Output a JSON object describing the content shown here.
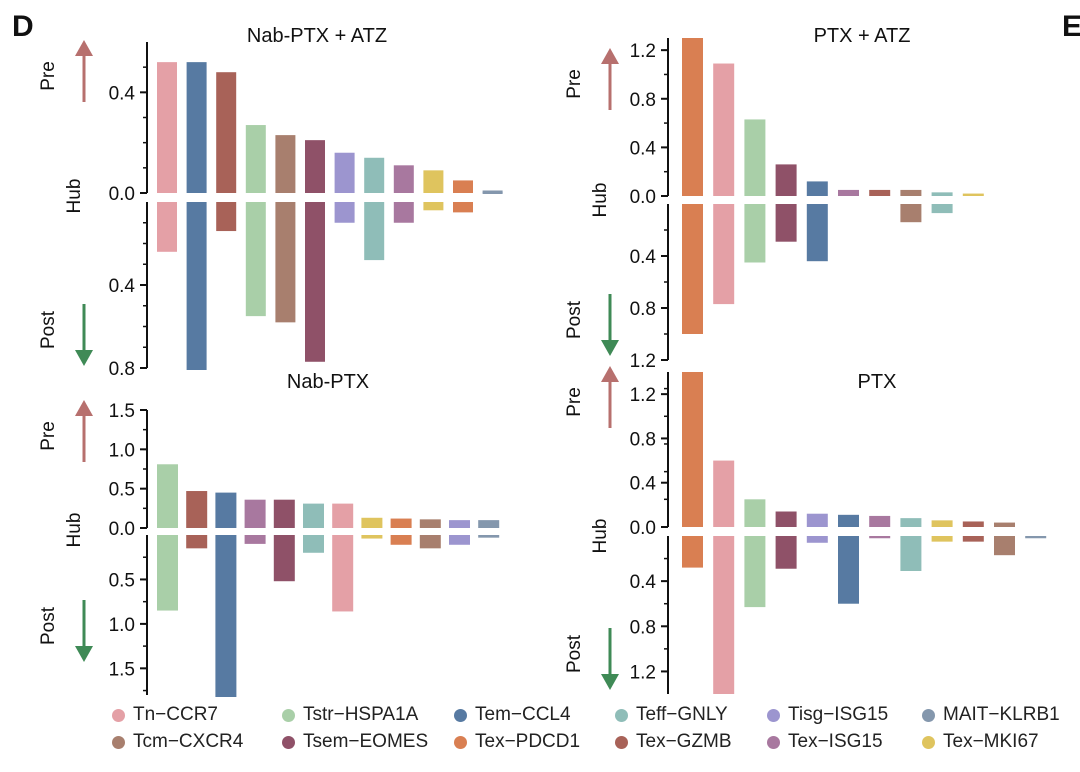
{
  "panel_labels": {
    "left": "D",
    "right": "E"
  },
  "axis_words": {
    "pre": "Pre",
    "hub": "Hub",
    "post": "Post"
  },
  "colors": {
    "arrow_up": "#b7706e",
    "arrow_down": "#3f8a56",
    "axis": "#111111"
  },
  "legend": [
    {
      "label": "Tn−CCR7",
      "color": "#e4a0a6"
    },
    {
      "label": "Tstr−HSPA1A",
      "color": "#a9cfa8"
    },
    {
      "label": "Tem−CCL4",
      "color": "#577aa2"
    },
    {
      "label": "Teff−GNLY",
      "color": "#8fbdb8"
    },
    {
      "label": "Tisg−ISG15",
      "color": "#9c95cf"
    },
    {
      "label": "MAIT−KLRB1",
      "color": "#8497ad"
    },
    {
      "label": "Tcm−CXCR4",
      "color": "#a87f6e"
    },
    {
      "label": "Tsem−EOMES",
      "color": "#8f5168"
    },
    {
      "label": "Tex−PDCD1",
      "color": "#d97f52"
    },
    {
      "label": "Tex−GZMB",
      "color": "#a86258"
    },
    {
      "label": "Tex−ISG15",
      "color": "#a8789f"
    },
    {
      "label": "Tex−MKI67",
      "color": "#dfc45e"
    }
  ],
  "chart_data": [
    {
      "type": "bar",
      "title": "Nab-PTX + ATZ",
      "ylabel": "Hub",
      "ylim_pre": [
        0,
        0.6
      ],
      "ylim_post": [
        0,
        0.8
      ],
      "ticks_pre": [
        "0.0",
        "0.4"
      ],
      "ticks_post": [
        "0.4",
        "0.8"
      ],
      "categories": [
        "Tn−CCR7",
        "Tem−CCL4",
        "Tex−GZMB",
        "Tstr−HSPA1A",
        "Tcm−CXCR4",
        "Tsem−EOMES",
        "Tisg−ISG15",
        "Teff−GNLY",
        "Tex−ISG15",
        "Tex−MKI67",
        "Tex−PDCD1",
        "MAIT−KLRB1"
      ],
      "pre": [
        0.52,
        0.52,
        0.48,
        0.27,
        0.23,
        0.21,
        0.16,
        0.14,
        0.11,
        0.09,
        0.05,
        0.01
      ],
      "post": [
        0.24,
        0.82,
        0.14,
        0.55,
        0.58,
        0.77,
        0.1,
        0.28,
        0.1,
        0.04,
        0.05,
        0.0
      ]
    },
    {
      "type": "bar",
      "title": "PTX + ATZ",
      "ylabel": "Hub",
      "ylim_pre": [
        0,
        1.3
      ],
      "ylim_post": [
        0,
        1.2
      ],
      "ticks_pre": [
        "0.0",
        "0.4",
        "0.8",
        "1.2"
      ],
      "ticks_post": [
        "0.4",
        "0.8",
        "1.2"
      ],
      "categories": [
        "Tex−PDCD1",
        "Tn−CCR7",
        "Tstr−HSPA1A",
        "Tsem−EOMES",
        "Tem−CCL4",
        "Tex−ISG15",
        "Tex−GZMB",
        "Tcm−CXCR4",
        "Teff−GNLY",
        "Tex−MKI67"
      ],
      "pre": [
        1.3,
        1.09,
        0.63,
        0.26,
        0.12,
        0.05,
        0.05,
        0.05,
        0.03,
        0.02
      ],
      "post": [
        1.0,
        0.77,
        0.45,
        0.29,
        0.44,
        0.0,
        0.0,
        0.14,
        0.07,
        0.0
      ]
    },
    {
      "type": "bar",
      "title": "Nab-PTX",
      "ylabel": "Hub",
      "ylim_pre": [
        0,
        1.5
      ],
      "ylim_post": [
        0,
        1.8
      ],
      "ticks_pre": [
        "0.0",
        "0.5",
        "1.0",
        "1.5"
      ],
      "ticks_post": [
        "0.5",
        "1.0",
        "1.5"
      ],
      "categories": [
        "Tstr−HSPA1A",
        "Tex−GZMB",
        "Tem−CCL4",
        "Tex−ISG15",
        "Tsem−EOMES",
        "Teff−GNLY",
        "Tn−CCR7",
        "Tex−MKI67",
        "Tex−PDCD1",
        "Tcm−CXCR4",
        "Tisg−ISG15",
        "MAIT−KLRB1"
      ],
      "pre": [
        0.81,
        0.47,
        0.45,
        0.36,
        0.36,
        0.31,
        0.31,
        0.13,
        0.12,
        0.11,
        0.1,
        0.1
      ],
      "post": [
        0.85,
        0.15,
        1.86,
        0.1,
        0.52,
        0.2,
        0.86,
        0.04,
        0.11,
        0.15,
        0.11,
        0.03
      ]
    },
    {
      "type": "bar",
      "title": "PTX",
      "ylabel": "Hub",
      "ylim_pre": [
        0,
        1.4
      ],
      "ylim_post": [
        0,
        1.4
      ],
      "ticks_pre": [
        "0.0",
        "0.4",
        "0.8",
        "1.2"
      ],
      "ticks_post": [
        "0.4",
        "0.8",
        "1.2"
      ],
      "categories": [
        "Tex−PDCD1",
        "Tn−CCR7",
        "Tstr−HSPA1A",
        "Tsem−EOMES",
        "Tisg−ISG15",
        "Tem−CCL4",
        "Tex−ISG15",
        "Teff−GNLY",
        "Tex−MKI67",
        "Tex−GZMB",
        "Tcm−CXCR4",
        "MAIT−KLRB1"
      ],
      "pre": [
        1.4,
        0.6,
        0.25,
        0.14,
        0.12,
        0.11,
        0.1,
        0.08,
        0.06,
        0.05,
        0.04,
        0.0
      ],
      "post": [
        0.28,
        1.4,
        0.63,
        0.29,
        0.06,
        0.6,
        0.02,
        0.31,
        0.05,
        0.05,
        0.17,
        0.02
      ]
    }
  ]
}
